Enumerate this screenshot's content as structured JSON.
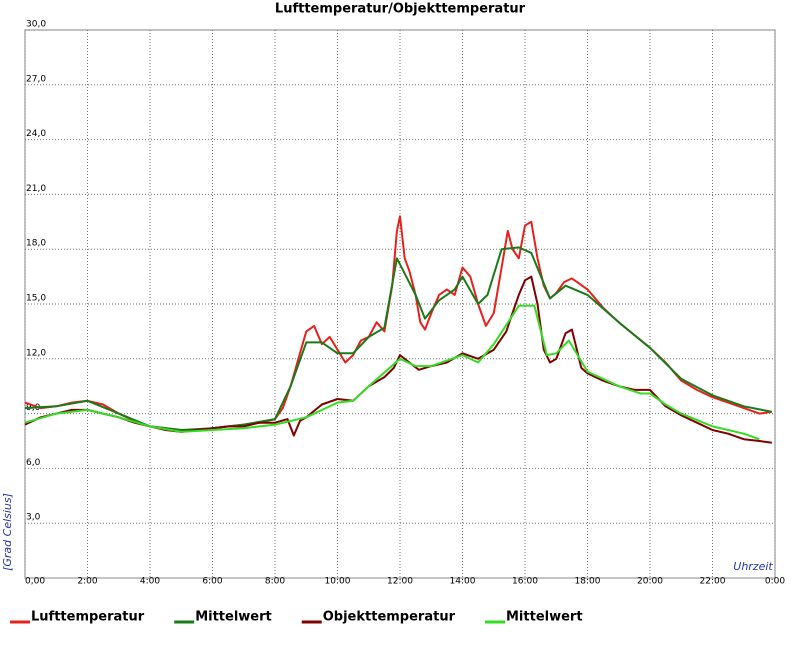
{
  "chart_data": {
    "type": "line",
    "title": "Lufttemperatur/Objekttemperatur",
    "x_label": "Uhrzeit",
    "y_label": "[Grad Celsius]",
    "xlim": [
      0,
      24
    ],
    "ylim": [
      0,
      30
    ],
    "grid": true,
    "legend": "bottom",
    "xticks": [
      {
        "value": 0,
        "label": "0,00"
      },
      {
        "value": 2,
        "label": "2:00"
      },
      {
        "value": 4,
        "label": "4:00"
      },
      {
        "value": 6,
        "label": "6:00"
      },
      {
        "value": 8,
        "label": "8:00"
      },
      {
        "value": 10,
        "label": "10:00"
      },
      {
        "value": 12,
        "label": "12:00"
      },
      {
        "value": 14,
        "label": "14:00"
      },
      {
        "value": 16,
        "label": "16:00"
      },
      {
        "value": 18,
        "label": "18:00"
      },
      {
        "value": 20,
        "label": "20:00"
      },
      {
        "value": 22,
        "label": "22:00"
      },
      {
        "value": 24,
        "label": "0:00"
      }
    ],
    "yticks": [
      {
        "value": 3,
        "label": "3,0"
      },
      {
        "value": 6,
        "label": "6,0"
      },
      {
        "value": 9,
        "label": "9,0"
      },
      {
        "value": 12,
        "label": "12,0"
      },
      {
        "value": 15,
        "label": "15,0"
      },
      {
        "value": 18,
        "label": "18,0"
      },
      {
        "value": 21,
        "label": "21,0"
      },
      {
        "value": 24,
        "label": "24,0"
      },
      {
        "value": 27,
        "label": "27,0"
      },
      {
        "value": 30,
        "label": "30,0"
      }
    ],
    "series": [
      {
        "name": "Lufttemperatur",
        "color": "#e8201c",
        "x": [
          0,
          0.5,
          1,
          1.5,
          2,
          2.5,
          3,
          3.5,
          4,
          4.5,
          5,
          5.5,
          6,
          6.5,
          7,
          7.5,
          8,
          8.25,
          8.5,
          8.75,
          9,
          9.25,
          9.5,
          9.75,
          10,
          10.25,
          10.5,
          10.75,
          11,
          11.25,
          11.5,
          11.75,
          11.9,
          12,
          12.15,
          12.3,
          12.5,
          12.65,
          12.8,
          13,
          13.25,
          13.5,
          13.75,
          14,
          14.25,
          14.5,
          14.75,
          15,
          15.25,
          15.45,
          15.6,
          15.8,
          16,
          16.2,
          16.4,
          16.6,
          16.8,
          17,
          17.25,
          17.5,
          18,
          18.5,
          19,
          19.5,
          20,
          20.5,
          21,
          21.5,
          22,
          22.5,
          23,
          23.5,
          23.9
        ],
        "values": [
          9.6,
          9.3,
          9.4,
          9.6,
          9.7,
          9.5,
          9.0,
          8.6,
          8.3,
          8.2,
          8.1,
          8.1,
          8.2,
          8.3,
          8.4,
          8.5,
          8.7,
          9.3,
          10.5,
          12.0,
          13.5,
          13.8,
          12.8,
          13.2,
          12.5,
          11.8,
          12.2,
          13.0,
          13.2,
          14.0,
          13.5,
          16.0,
          19.0,
          19.8,
          17.5,
          16.8,
          15.5,
          14.0,
          13.6,
          14.5,
          15.5,
          15.8,
          15.5,
          17.0,
          16.5,
          15.0,
          13.8,
          14.5,
          17.0,
          19.0,
          18.0,
          17.5,
          19.3,
          19.5,
          17.5,
          16.0,
          15.3,
          15.6,
          16.2,
          16.4,
          15.8,
          14.8,
          14.0,
          13.3,
          12.6,
          11.8,
          10.8,
          10.3,
          9.9,
          9.6,
          9.3,
          9.0,
          9.1
        ]
      },
      {
        "name": "Mittelwert",
        "color": "#1a7a1a",
        "x": [
          0,
          1,
          2,
          3,
          4,
          5,
          6,
          7,
          8,
          8.5,
          9,
          9.5,
          10,
          10.5,
          11,
          11.5,
          11.9,
          12.5,
          12.8,
          13.25,
          13.75,
          14,
          14.5,
          14.8,
          15.25,
          15.8,
          16.2,
          16.8,
          17.3,
          18,
          19,
          20,
          21,
          22,
          23,
          23.9
        ],
        "values": [
          9.3,
          9.4,
          9.7,
          9.0,
          8.3,
          8.1,
          8.2,
          8.4,
          8.7,
          10.5,
          12.9,
          12.9,
          12.3,
          12.3,
          13.2,
          13.7,
          17.5,
          15.5,
          14.2,
          15.2,
          15.8,
          16.5,
          15.0,
          15.5,
          18.0,
          18.1,
          17.8,
          15.3,
          16.0,
          15.5,
          14.0,
          12.6,
          10.9,
          10.0,
          9.4,
          9.1
        ]
      },
      {
        "name": "Objekttemperatur",
        "color": "#800000",
        "x": [
          0,
          0.5,
          1,
          1.5,
          2,
          2.5,
          3,
          3.5,
          4,
          4.5,
          5,
          5.5,
          6,
          6.5,
          7,
          7.5,
          8,
          8.4,
          8.6,
          8.8,
          9,
          9.5,
          10,
          10.5,
          11,
          11.5,
          11.8,
          12,
          12.3,
          12.6,
          13,
          13.5,
          14,
          14.5,
          15,
          15.4,
          15.6,
          15.8,
          16,
          16.2,
          16.4,
          16.6,
          16.8,
          17,
          17.3,
          17.5,
          17.8,
          18,
          18.5,
          19,
          19.5,
          20,
          20.5,
          21,
          21.5,
          22,
          22.5,
          23,
          23.5,
          23.9
        ],
        "values": [
          8.4,
          8.8,
          9.0,
          9.2,
          9.2,
          9.0,
          8.8,
          8.5,
          8.3,
          8.1,
          8.0,
          8.1,
          8.2,
          8.3,
          8.3,
          8.5,
          8.5,
          8.7,
          7.8,
          8.6,
          8.8,
          9.5,
          9.8,
          9.7,
          10.5,
          11.0,
          11.5,
          12.2,
          11.8,
          11.4,
          11.6,
          11.8,
          12.3,
          12.0,
          12.5,
          13.5,
          14.5,
          15.5,
          16.3,
          16.5,
          15.0,
          12.5,
          11.8,
          12.0,
          13.4,
          13.6,
          11.5,
          11.2,
          10.8,
          10.5,
          10.3,
          10.3,
          9.4,
          8.9,
          8.5,
          8.1,
          7.9,
          7.6,
          7.5,
          7.4
        ]
      },
      {
        "name": "Mittelwert",
        "color": "#33dd22",
        "x": [
          0,
          1,
          2,
          3,
          4,
          5,
          6,
          7,
          8,
          9,
          10,
          10.5,
          11,
          12,
          12.5,
          13,
          14,
          14.5,
          15,
          15.8,
          16.3,
          16.7,
          17,
          17.4,
          18,
          19,
          19.7,
          20,
          20.5,
          21,
          22,
          22.5,
          23,
          23.5
        ],
        "values": [
          8.5,
          9.0,
          9.2,
          8.8,
          8.3,
          8.0,
          8.1,
          8.2,
          8.4,
          8.8,
          9.6,
          9.7,
          10.5,
          12.0,
          11.6,
          11.6,
          12.2,
          11.8,
          12.8,
          14.9,
          14.9,
          12.2,
          12.3,
          13.0,
          11.3,
          10.5,
          10.1,
          10.1,
          9.5,
          9.0,
          8.3,
          8.1,
          7.9,
          7.6
        ]
      }
    ]
  }
}
